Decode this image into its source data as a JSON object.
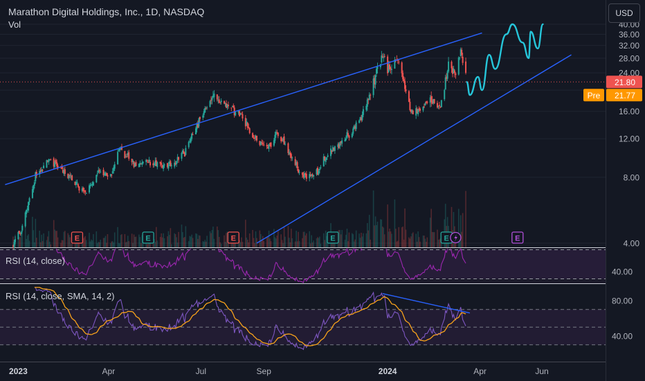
{
  "header": {
    "title": "Marathon Digital Holdings, Inc., 1D, NASDAQ",
    "vol_label": "Vol",
    "currency_button": "USD"
  },
  "price_badges": {
    "last": "21.80",
    "pre_label": "Pre",
    "pre_value": "21.77"
  },
  "panels": {
    "rsi1_label": "RSI (14, close)",
    "rsi2_label": "RSI (14, close, SMA, 14, 2)"
  },
  "earnings_marker": "E",
  "colors": {
    "background": "#141823",
    "candle_up": "#26a69a",
    "candle_down": "#ef5350",
    "channel": "#2962ff",
    "projection": "#26c6da",
    "rsi": "#9c27b0",
    "rsi_ma": "#f7a21b",
    "pre_badge": "#ff9800",
    "last_badge": "#ef5350"
  },
  "chart_data": [
    {
      "type": "candlestick",
      "title": "Marathon Digital Holdings, Inc., 1D, NASDAQ",
      "price_scale": "log",
      "y_ticks": [
        4,
        8,
        12,
        16,
        20,
        24,
        28,
        32,
        36,
        40
      ],
      "y_tick_labels": [
        "4.00",
        "8.00",
        "12.00",
        "16.00",
        "20.00",
        "24.00",
        "28.00",
        "32.00",
        "36.00",
        "40.00"
      ],
      "x_tick_labels": [
        "2023",
        "Apr",
        "Jul",
        "Sep",
        "2024",
        "Apr",
        "Jun"
      ],
      "price_path": [
        {
          "date": "2022-12-28",
          "price": 3.9
        },
        {
          "date": "2023-01-05",
          "price": 4.6
        },
        {
          "date": "2023-01-20",
          "price": 8.3
        },
        {
          "date": "2023-02-02",
          "price": 9.6
        },
        {
          "date": "2023-02-20",
          "price": 8.2
        },
        {
          "date": "2023-03-10",
          "price": 6.6
        },
        {
          "date": "2023-03-20",
          "price": 8.4
        },
        {
          "date": "2023-04-03",
          "price": 8.0
        },
        {
          "date": "2023-04-12",
          "price": 10.9
        },
        {
          "date": "2023-04-25",
          "price": 9.2
        },
        {
          "date": "2023-05-15",
          "price": 9.4
        },
        {
          "date": "2023-06-01",
          "price": 9.0
        },
        {
          "date": "2023-06-15",
          "price": 10.5
        },
        {
          "date": "2023-06-28",
          "price": 14.0
        },
        {
          "date": "2023-07-13",
          "price": 18.8
        },
        {
          "date": "2023-07-28",
          "price": 16.8
        },
        {
          "date": "2023-08-10",
          "price": 15.6
        },
        {
          "date": "2023-08-22",
          "price": 12.0
        },
        {
          "date": "2023-09-05",
          "price": 10.8
        },
        {
          "date": "2023-09-15",
          "price": 12.6
        },
        {
          "date": "2023-09-28",
          "price": 10.0
        },
        {
          "date": "2023-10-10",
          "price": 8.0
        },
        {
          "date": "2023-10-24",
          "price": 8.4
        },
        {
          "date": "2023-11-02",
          "price": 10.2
        },
        {
          "date": "2023-11-20",
          "price": 12.0
        },
        {
          "date": "2023-12-05",
          "price": 14.8
        },
        {
          "date": "2023-12-15",
          "price": 20.0
        },
        {
          "date": "2023-12-27",
          "price": 28.5
        },
        {
          "date": "2024-01-03",
          "price": 24.0
        },
        {
          "date": "2024-01-12",
          "price": 28.0
        },
        {
          "date": "2024-01-23",
          "price": 16.5
        },
        {
          "date": "2024-02-01",
          "price": 16.0
        },
        {
          "date": "2024-02-12",
          "price": 18.5
        },
        {
          "date": "2024-02-22",
          "price": 16.8
        },
        {
          "date": "2024-03-01",
          "price": 26.0
        },
        {
          "date": "2024-03-08",
          "price": 24.0
        },
        {
          "date": "2024-03-13",
          "price": 30.0
        },
        {
          "date": "2024-03-19",
          "price": 22.0
        }
      ],
      "last_price": 21.8,
      "premarket_price": 21.77,
      "projection_path": [
        {
          "date": "2024-03-19",
          "price": 21.8
        },
        {
          "date": "2024-03-22",
          "price": 19.0
        },
        {
          "date": "2024-03-30",
          "price": 23.0
        },
        {
          "date": "2024-04-03",
          "price": 20.0
        },
        {
          "date": "2024-04-10",
          "price": 29.0
        },
        {
          "date": "2024-04-16",
          "price": 25.0
        },
        {
          "date": "2024-04-27",
          "price": 36.0
        },
        {
          "date": "2024-05-03",
          "price": 40.0
        },
        {
          "date": "2024-05-13",
          "price": 33.0
        },
        {
          "date": "2024-05-19",
          "price": 28.0
        },
        {
          "date": "2024-05-21",
          "price": 37.0
        },
        {
          "date": "2024-05-28",
          "price": 31.0
        },
        {
          "date": "2024-06-02",
          "price": 40.0
        }
      ],
      "channel_upper": [
        {
          "date": "2022-12-20",
          "price": 7.4
        },
        {
          "date": "2024-04-03",
          "price": 36.5
        }
      ],
      "channel_lower": [
        {
          "date": "2023-08-25",
          "price": 4.0
        },
        {
          "date": "2024-06-30",
          "price": 29.0
        }
      ],
      "earnings_dates": [
        "2023-03-01",
        "2023-05-10",
        "2023-08-02",
        "2023-11-08",
        "2024-02-28",
        "2024-05-08"
      ]
    },
    {
      "type": "line",
      "title": "RSI (14, close)",
      "y_ticks": [
        40
      ],
      "y_tick_labels": [
        "40.00"
      ]
    },
    {
      "type": "line",
      "title": "RSI (14, close, SMA, 14, 2)",
      "series": [
        {
          "name": "RSI",
          "color": "#9c27b0"
        },
        {
          "name": "SMA",
          "color": "#f7a21b"
        }
      ],
      "y_ticks": [
        40,
        80
      ],
      "y_tick_labels": [
        "40.00",
        "80.00"
      ],
      "bearish_divergence_line": [
        {
          "date": "2023-12-27",
          "value": 88
        },
        {
          "date": "2024-03-22",
          "value": 66
        }
      ]
    }
  ]
}
